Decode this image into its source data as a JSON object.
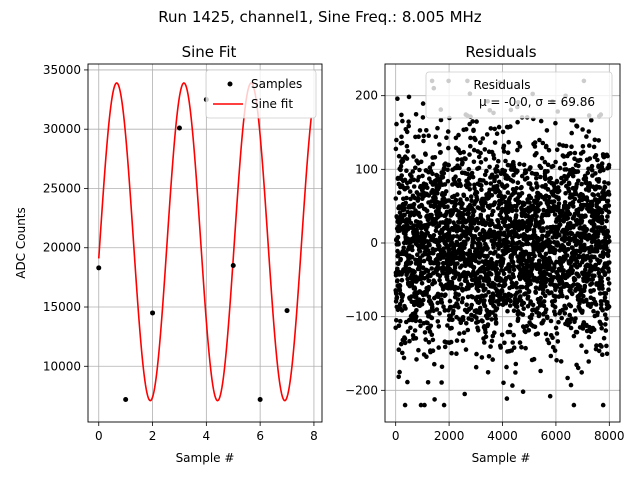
{
  "figure_title": "Run 1425, channel1, Sine Freq.: 8.005 MHz",
  "chart_data": [
    {
      "type": "line",
      "title": "Sine Fit",
      "xlabel": "Sample #",
      "ylabel": "ADC Counts",
      "xlim": [
        -0.4,
        8.3
      ],
      "ylim": [
        5300,
        35500
      ],
      "xticks": [
        0,
        2,
        4,
        6,
        8
      ],
      "yticks": [
        10000,
        15000,
        20000,
        25000,
        30000,
        35000
      ],
      "grid": true,
      "legend": {
        "placement": "upper-right",
        "entries": [
          "Samples",
          "Sine fit"
        ]
      },
      "series": [
        {
          "name": "Samples",
          "kind": "scatter",
          "color": "#000000",
          "x": [
            0,
            1,
            2,
            3,
            4,
            5,
            6,
            7
          ],
          "y": [
            18300,
            7200,
            14500,
            30100,
            32500,
            18500,
            7200,
            14700
          ]
        },
        {
          "name": "Sine fit",
          "kind": "line",
          "color": "#ff0000",
          "x_range": [
            0,
            7.9
          ],
          "function": "A*sin(2*pi*f*x + phi) + C",
          "params": {
            "A": 13400,
            "C": 20500,
            "f": 0.4,
            "phi": -0.105
          }
        }
      ]
    },
    {
      "type": "scatter",
      "title": "Residuals",
      "xlabel": "Sample #",
      "ylabel": "",
      "xlim": [
        -400,
        8400
      ],
      "ylim": [
        -243,
        243
      ],
      "xticks": [
        0,
        2000,
        4000,
        6000,
        8000
      ],
      "yticks": [
        -200,
        -100,
        0,
        100,
        200
      ],
      "grid": true,
      "legend": {
        "placement": "upper-right",
        "entries": [
          "Residuals",
          "μ = -0.0, σ = 69.86"
        ]
      },
      "series": [
        {
          "name": "Residuals",
          "color": "#000000",
          "n_points": 8000,
          "mean": -0.0,
          "std": 69.86,
          "x_range": [
            0,
            8000
          ],
          "y_range": [
            -220,
            220
          ]
        }
      ]
    }
  ]
}
